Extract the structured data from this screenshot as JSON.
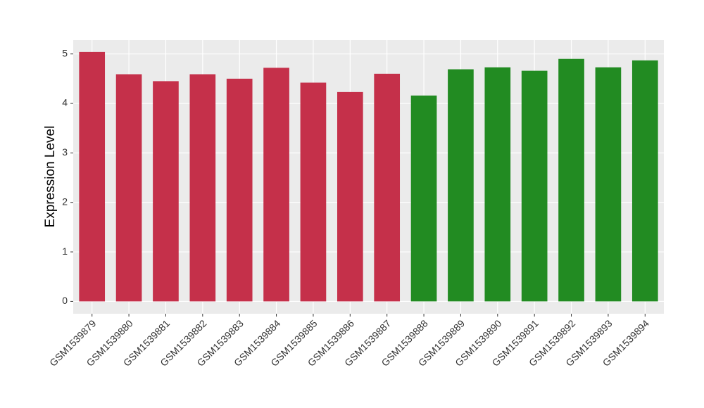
{
  "chart_data": {
    "type": "bar",
    "y_label": "Expression Level",
    "categories": [
      "GSM1539879",
      "GSM1539880",
      "GSM1539881",
      "GSM1539882",
      "GSM1539883",
      "GSM1539884",
      "GSM1539885",
      "GSM1539886",
      "GSM1539887",
      "GSM1539888",
      "GSM1539889",
      "GSM1539890",
      "GSM1539891",
      "GSM1539892",
      "GSM1539893",
      "GSM1539894"
    ],
    "values": [
      5.04,
      4.59,
      4.45,
      4.59,
      4.5,
      4.72,
      4.42,
      4.23,
      4.6,
      4.16,
      4.69,
      4.73,
      4.66,
      4.9,
      4.73,
      4.87
    ],
    "colors": [
      "#c5304a",
      "#c5304a",
      "#c5304a",
      "#c5304a",
      "#c5304a",
      "#c5304a",
      "#c5304a",
      "#c5304a",
      "#c5304a",
      "#228b22",
      "#228b22",
      "#228b22",
      "#228b22",
      "#228b22",
      "#228b22",
      "#228b22"
    ],
    "ylim": [
      -0.25,
      5.28
    ],
    "yticks": [
      0,
      1,
      2,
      3,
      4,
      5
    ],
    "grid": true
  }
}
